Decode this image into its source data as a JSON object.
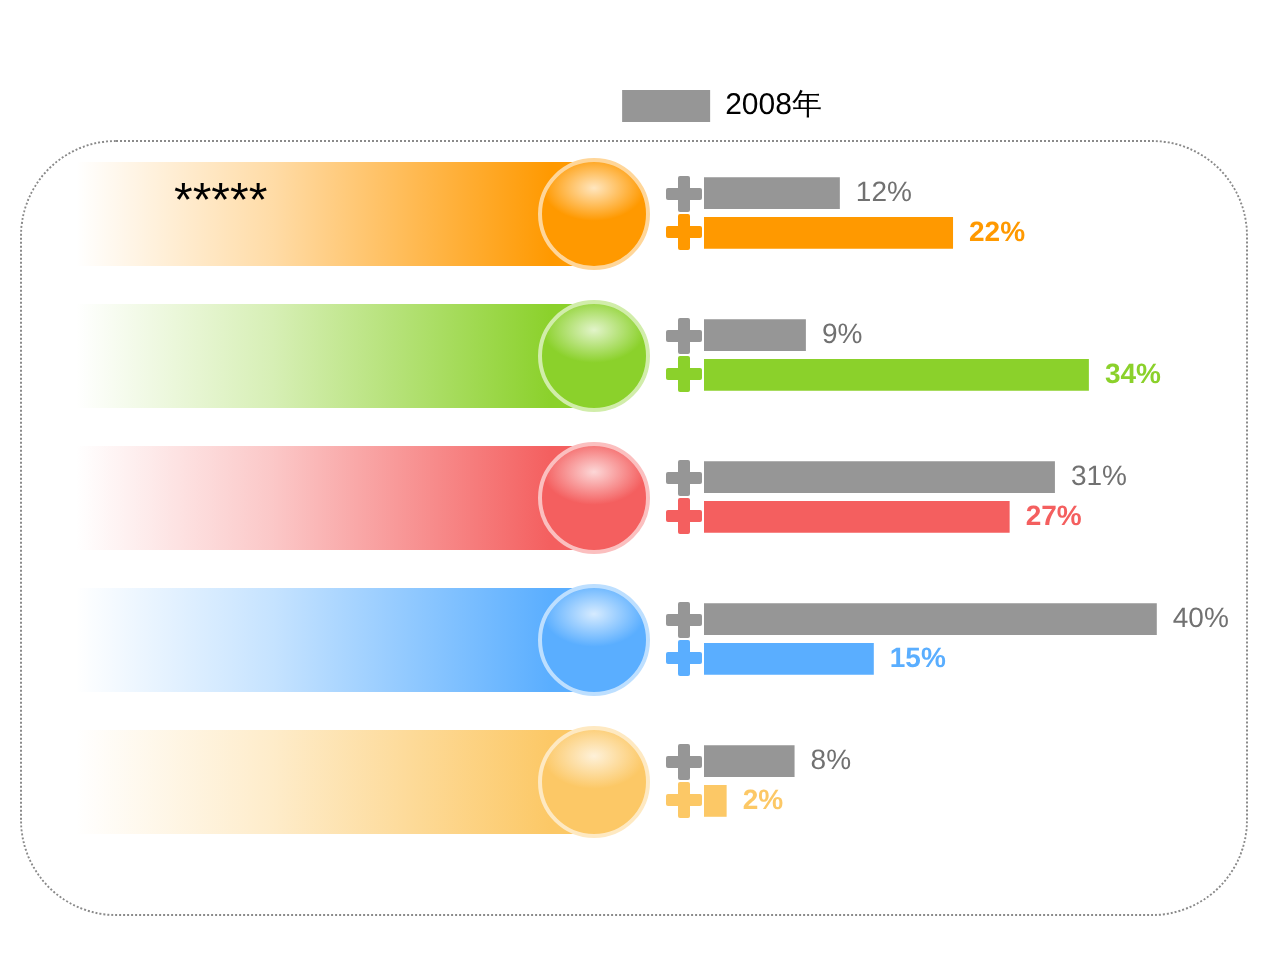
{
  "chart_data": {
    "type": "bar",
    "orientation": "horizontal",
    "legend": "top",
    "tick_labels": false,
    "annotations": [
      "*****"
    ],
    "categories": [
      null,
      null,
      null,
      null,
      null
    ],
    "series": [
      {
        "name": "2008年",
        "color": "#969696",
        "values": [
          12,
          9,
          31,
          40,
          8
        ],
        "value_labels": [
          "12%",
          "9%",
          "31%",
          "40%",
          "8%"
        ]
      },
      {
        "colors": [
          "#ff9900",
          "#8bd12b",
          "#f45f5f",
          "#5aaeff",
          "#fcc866"
        ],
        "values": [
          22,
          34,
          27,
          15,
          2
        ],
        "value_labels": [
          "22%",
          "34%",
          "27%",
          "15%",
          "2%"
        ]
      }
    ]
  }
}
